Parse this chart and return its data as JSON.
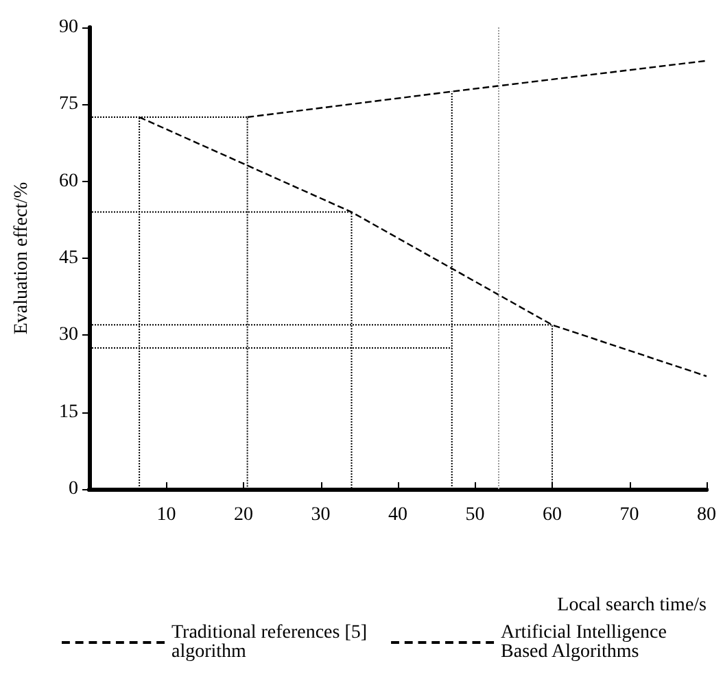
{
  "chart_data": {
    "type": "line",
    "xlabel": "Local search time/s",
    "ylabel": "Evaluation effect/%",
    "xlim": [
      0,
      80
    ],
    "xticks": [
      10,
      20,
      30,
      40,
      50,
      60,
      70,
      80
    ],
    "ylim": [
      0,
      90
    ],
    "yticks": [
      0,
      15,
      30,
      45,
      60,
      75,
      90
    ],
    "grid": false,
    "legend": "bottom",
    "marker": "none",
    "line_style": "dashed",
    "series": [
      {
        "name": "Traditional references [5] algorithm",
        "color": "#000000",
        "x": [
          6.5,
          34,
          60,
          80
        ],
        "values": [
          72.5,
          54,
          32,
          22
        ]
      },
      {
        "name": "Artificial Intelligence Based Algorithms",
        "color": "#000000",
        "x": [
          20.5,
          47,
          80
        ],
        "values": [
          72.5,
          77.5,
          83.5
        ]
      },
      {
        "color": "#000000",
        "line_style": "dotted",
        "x": [
          0,
          20.5,
          20.5
        ],
        "values": [
          72.5,
          72.5,
          0
        ]
      },
      {
        "color": "#000000",
        "line_style": "dotted",
        "x": [
          6.5,
          6.5
        ],
        "values": [
          0,
          72.5
        ]
      },
      {
        "color": "#000000",
        "line_style": "dotted",
        "x": [
          0,
          34,
          34
        ],
        "values": [
          54,
          54,
          0
        ]
      },
      {
        "color": "#000000",
        "line_style": "dotted",
        "x": [
          0,
          60,
          60
        ],
        "values": [
          32,
          32,
          0
        ]
      },
      {
        "color": "#000000",
        "line_style": "dotted",
        "x": [
          0,
          47
        ],
        "values": [
          27.5,
          27.5
        ]
      },
      {
        "color": "#000000",
        "line_style": "dotted",
        "x": [
          47,
          47
        ],
        "values": [
          0,
          77.5
        ]
      }
    ],
    "ref_lines": [
      {
        "axis": "x",
        "value": 53,
        "color": "#999999",
        "line_style": "dotted"
      }
    ]
  }
}
